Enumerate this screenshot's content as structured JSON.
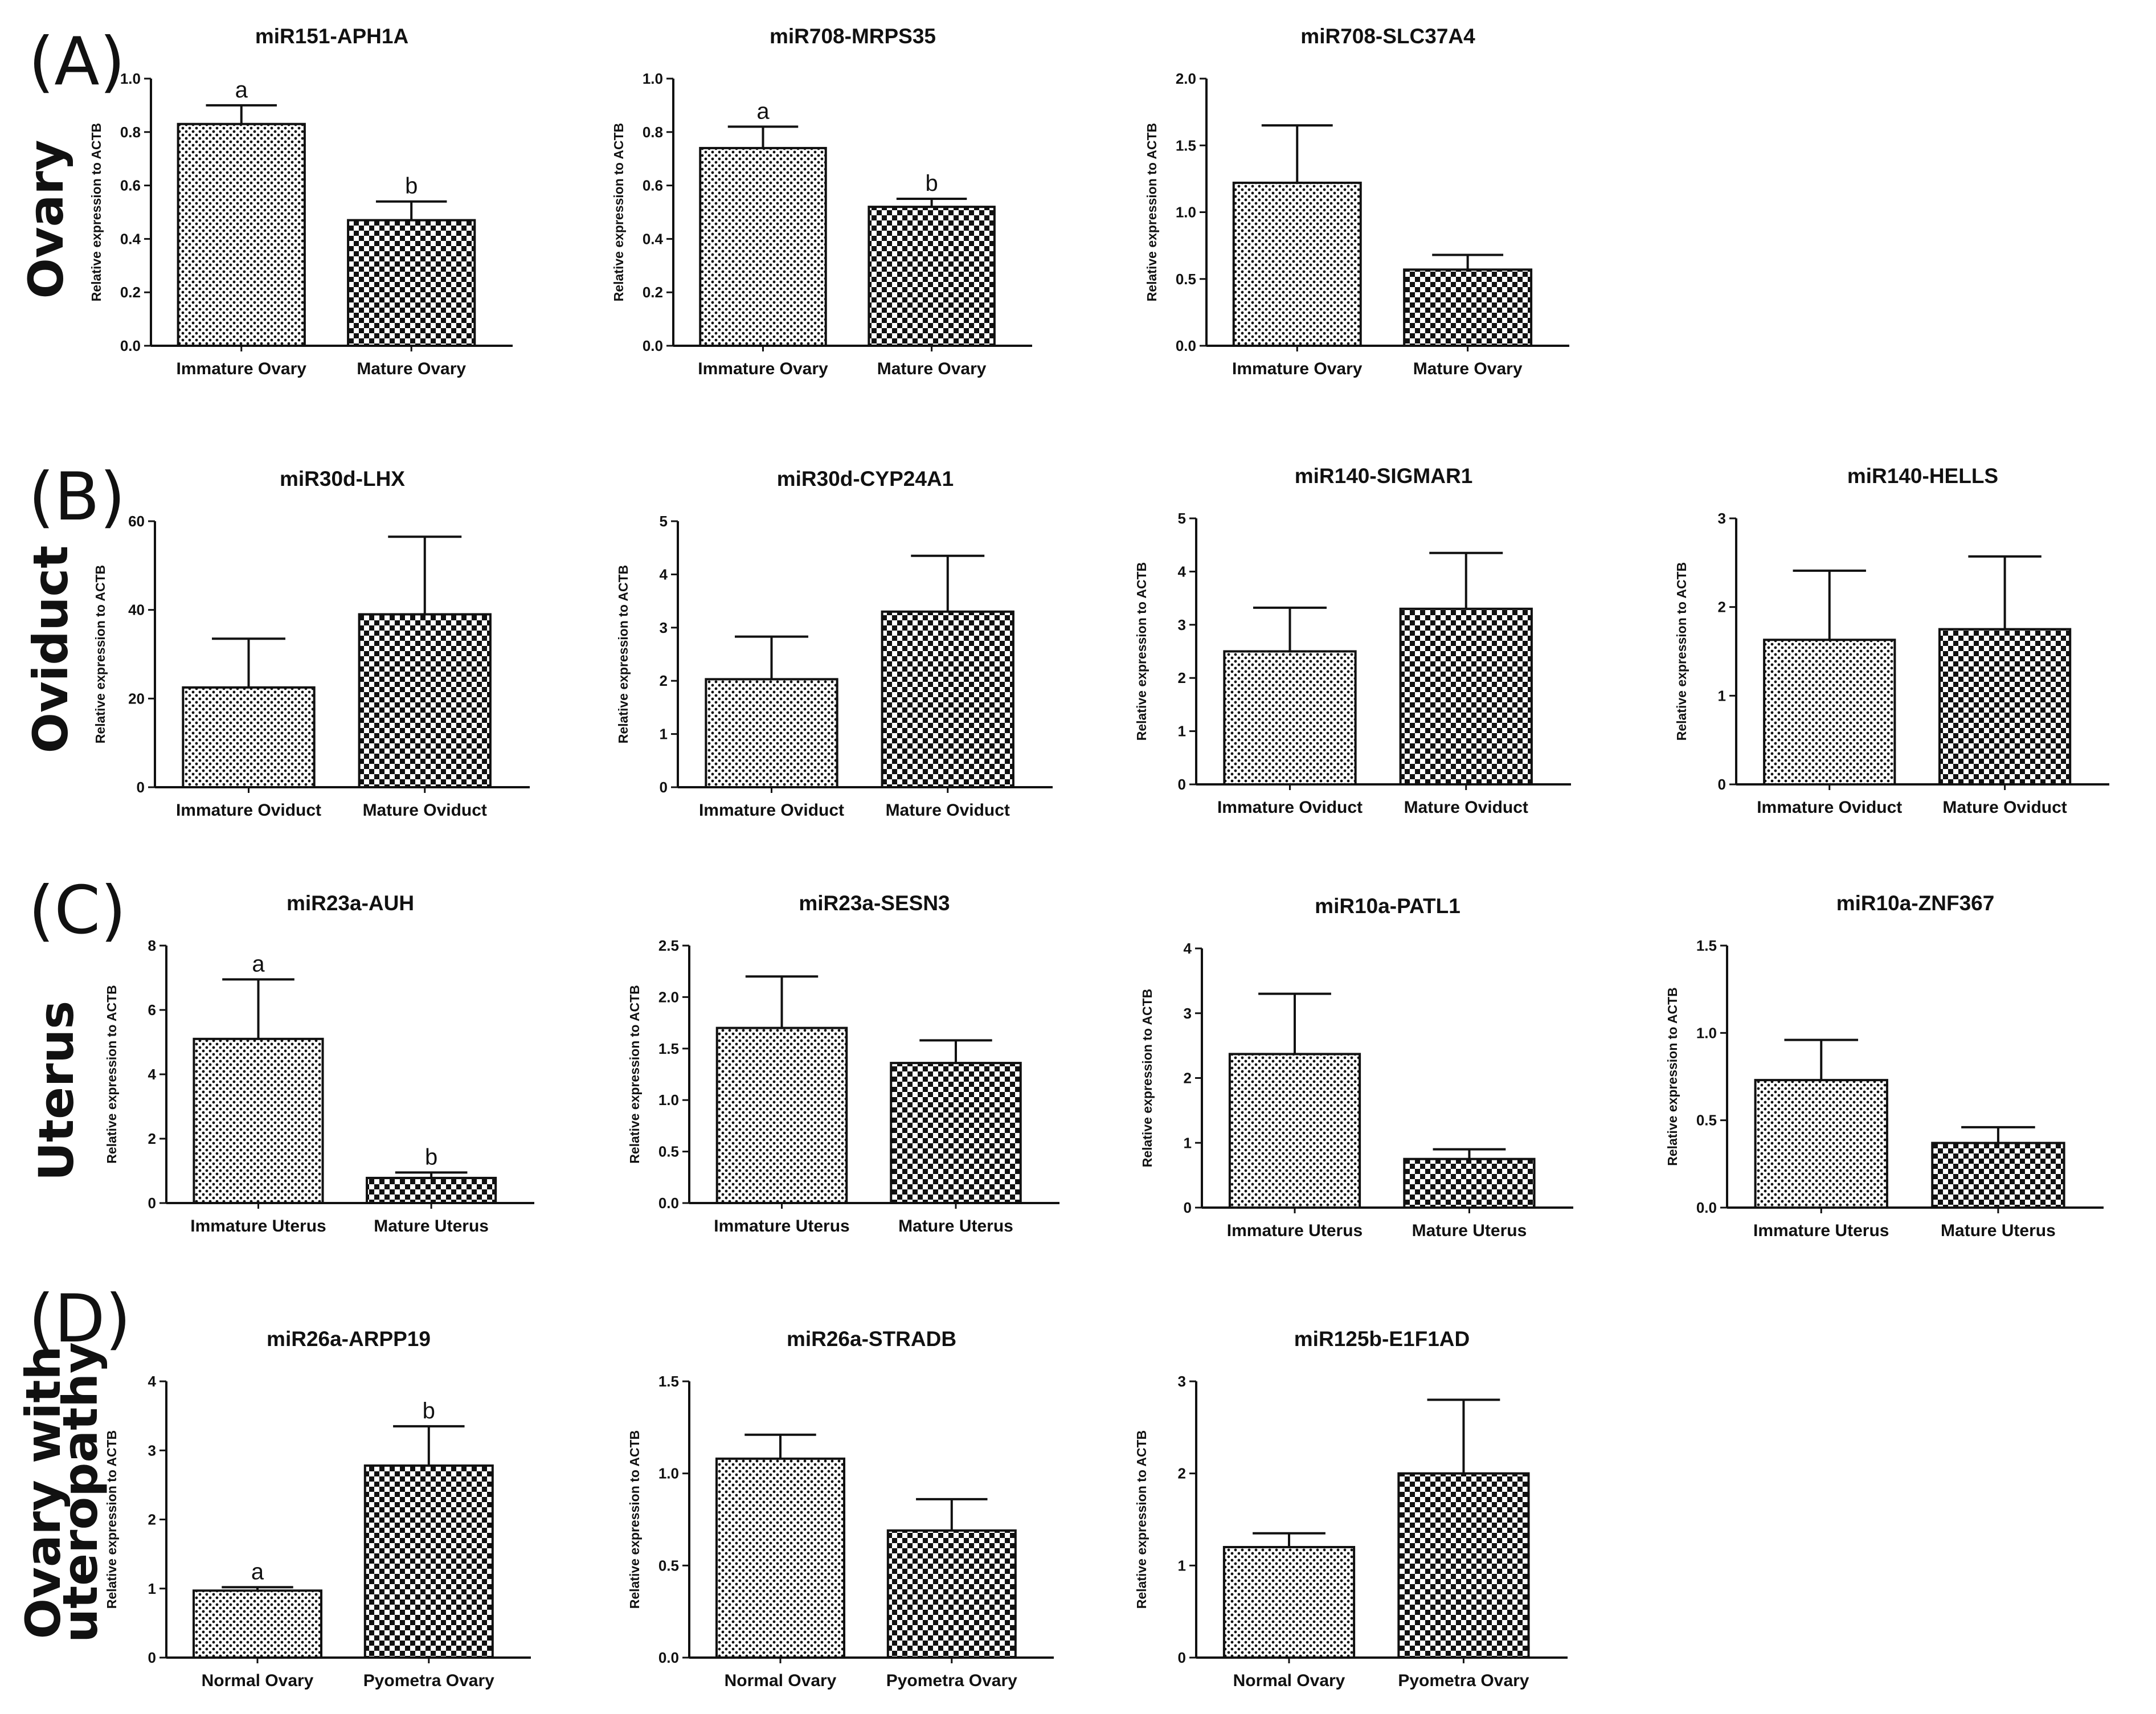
{
  "rows": [
    {
      "letter": "(A)",
      "tissue": [
        "Ovary"
      ]
    },
    {
      "letter": "(B)",
      "tissue": [
        "Oviduct"
      ]
    },
    {
      "letter": "(C)",
      "tissue": [
        "Uterus"
      ]
    },
    {
      "letter": "(D)",
      "tissue": [
        "Ovary with",
        "uteropathy"
      ]
    }
  ],
  "colors": {
    "ink": "#111111",
    "bar_fill": "#ffffff"
  },
  "chart_data": [
    {
      "type": "bar",
      "row": 0,
      "col": 0,
      "title": "miR151-APH1A",
      "ylabel": "Relative expression to ACTB",
      "categories": [
        "Immature Ovary",
        "Mature Ovary"
      ],
      "values": [
        0.83,
        0.47
      ],
      "errors": [
        0.07,
        0.07
      ],
      "significance": [
        "a",
        "b"
      ],
      "ylim": [
        0,
        1.0
      ],
      "ytick_labels": [
        "0.0",
        "0.2",
        "0.4",
        "0.6",
        "0.8",
        "1.0"
      ],
      "patterns": [
        "dots",
        "check"
      ]
    },
    {
      "type": "bar",
      "row": 0,
      "col": 1,
      "title": "miR708-MRPS35",
      "ylabel": "Relative expression to ACTB",
      "categories": [
        "Immature Ovary",
        "Mature Ovary"
      ],
      "values": [
        0.74,
        0.52
      ],
      "errors": [
        0.08,
        0.03
      ],
      "significance": [
        "a",
        "b"
      ],
      "ylim": [
        0,
        1.0
      ],
      "ytick_labels": [
        "0.0",
        "0.2",
        "0.4",
        "0.6",
        "0.8",
        "1.0"
      ],
      "patterns": [
        "dots",
        "check"
      ]
    },
    {
      "type": "bar",
      "row": 0,
      "col": 2,
      "title": "miR708-SLC37A4",
      "ylabel": "Relative expression to ACTB",
      "categories": [
        "Immature Ovary",
        "Mature Ovary"
      ],
      "values": [
        1.22,
        0.57
      ],
      "errors": [
        0.43,
        0.11
      ],
      "significance": [
        "",
        ""
      ],
      "ylim": [
        0,
        2.0
      ],
      "ytick_labels": [
        "0.0",
        "0.5",
        "1.0",
        "1.5",
        "2.0"
      ],
      "patterns": [
        "dots",
        "check"
      ]
    },
    {
      "type": "bar",
      "row": 1,
      "col": 0,
      "title": "miR30d-LHX",
      "ylabel": "Relative expression to ACTB",
      "categories": [
        "Immature Oviduct",
        "Mature Oviduct"
      ],
      "values": [
        22.5,
        39.0
      ],
      "errors": [
        11.0,
        17.5
      ],
      "significance": [
        "",
        ""
      ],
      "ylim": [
        0,
        60
      ],
      "ytick_labels": [
        "0",
        "20",
        "40",
        "60"
      ],
      "patterns": [
        "dots",
        "check"
      ]
    },
    {
      "type": "bar",
      "row": 1,
      "col": 1,
      "title": "miR30d-CYP24A1",
      "ylabel": "Relative expression to ACTB",
      "categories": [
        "Immature Oviduct",
        "Mature Oviduct"
      ],
      "values": [
        2.03,
        3.3
      ],
      "errors": [
        0.8,
        1.05
      ],
      "significance": [
        "",
        ""
      ],
      "ylim": [
        0,
        5
      ],
      "ytick_labels": [
        "0",
        "1",
        "2",
        "3",
        "4",
        "5"
      ],
      "patterns": [
        "dots",
        "check"
      ]
    },
    {
      "type": "bar",
      "row": 1,
      "col": 2,
      "title": "miR140-SIGMAR1",
      "ylabel": "Relative expression to ACTB",
      "categories": [
        "Immature Oviduct",
        "Mature Oviduct"
      ],
      "values": [
        2.5,
        3.3
      ],
      "errors": [
        0.82,
        1.05
      ],
      "significance": [
        "",
        ""
      ],
      "ylim": [
        0,
        5
      ],
      "ytick_labels": [
        "0",
        "1",
        "2",
        "3",
        "4",
        "5"
      ],
      "patterns": [
        "dots",
        "check"
      ]
    },
    {
      "type": "bar",
      "row": 1,
      "col": 3,
      "title": "miR140-HELLS",
      "ylabel": "Relative expression to ACTB",
      "categories": [
        "Immature Oviduct",
        "Mature Oviduct"
      ],
      "values": [
        1.63,
        1.75
      ],
      "errors": [
        0.78,
        0.82
      ],
      "significance": [
        "",
        ""
      ],
      "ylim": [
        0,
        3
      ],
      "ytick_labels": [
        "0",
        "1",
        "2",
        "3"
      ],
      "patterns": [
        "dots",
        "check"
      ]
    },
    {
      "type": "bar",
      "row": 2,
      "col": 0,
      "title": "miR23a-AUH",
      "ylabel": "Relative expression to ACTB",
      "categories": [
        "Immature Uterus",
        "Mature Uterus"
      ],
      "values": [
        5.1,
        0.78
      ],
      "errors": [
        1.85,
        0.17
      ],
      "significance": [
        "a",
        "b"
      ],
      "ylim": [
        0,
        8
      ],
      "ytick_labels": [
        "0",
        "2",
        "4",
        "6",
        "8"
      ],
      "patterns": [
        "dots",
        "check"
      ]
    },
    {
      "type": "bar",
      "row": 2,
      "col": 1,
      "title": "miR23a-SESN3",
      "ylabel": "Relative expression to ACTB",
      "categories": [
        "Immature Uterus",
        "Mature Uterus"
      ],
      "values": [
        1.7,
        1.36
      ],
      "errors": [
        0.5,
        0.22
      ],
      "significance": [
        "",
        ""
      ],
      "ylim": [
        0,
        2.5
      ],
      "ytick_labels": [
        "0.0",
        "0.5",
        "1.0",
        "1.5",
        "2.0",
        "2.5"
      ],
      "patterns": [
        "dots",
        "check"
      ]
    },
    {
      "type": "bar",
      "row": 2,
      "col": 2,
      "title": "miR10a-PATL1",
      "ylabel": "Relative expression to ACTB",
      "categories": [
        "Immature Uterus",
        "Mature Uterus"
      ],
      "values": [
        2.37,
        0.75
      ],
      "errors": [
        0.93,
        0.15
      ],
      "significance": [
        "",
        ""
      ],
      "ylim": [
        0,
        4
      ],
      "ytick_labels": [
        "0",
        "1",
        "2",
        "3",
        "4"
      ],
      "patterns": [
        "dots",
        "check"
      ]
    },
    {
      "type": "bar",
      "row": 2,
      "col": 3,
      "title": "miR10a-ZNF367",
      "ylabel": "Relative expression to ACTB",
      "categories": [
        "Immature Uterus",
        "Mature Uterus"
      ],
      "values": [
        0.73,
        0.37
      ],
      "errors": [
        0.23,
        0.09
      ],
      "significance": [
        "",
        ""
      ],
      "ylim": [
        0,
        1.5
      ],
      "ytick_labels": [
        "0.0",
        "0.5",
        "1.0",
        "1.5"
      ],
      "patterns": [
        "dots",
        "check"
      ]
    },
    {
      "type": "bar",
      "row": 3,
      "col": 0,
      "title": "miR26a-ARPP19",
      "ylabel": "Relative expression to ACTB",
      "categories": [
        "Normal Ovary",
        "Pyometra Ovary"
      ],
      "values": [
        0.97,
        2.78
      ],
      "errors": [
        0.05,
        0.57
      ],
      "significance": [
        "a",
        "b"
      ],
      "ylim": [
        0,
        4
      ],
      "ytick_labels": [
        "0",
        "1",
        "2",
        "3",
        "4"
      ],
      "patterns": [
        "dots",
        "check"
      ]
    },
    {
      "type": "bar",
      "row": 3,
      "col": 1,
      "title": "miR26a-STRADB",
      "ylabel": "Relative expression to ACTB",
      "categories": [
        "Normal Ovary",
        "Pyometra Ovary"
      ],
      "values": [
        1.08,
        0.69
      ],
      "errors": [
        0.13,
        0.17
      ],
      "significance": [
        "",
        ""
      ],
      "ylim": [
        0,
        1.5
      ],
      "ytick_labels": [
        "0.0",
        "0.5",
        "1.0",
        "1.5"
      ],
      "patterns": [
        "dots",
        "check"
      ]
    },
    {
      "type": "bar",
      "row": 3,
      "col": 2,
      "title": "miR125b-E1F1AD",
      "ylabel": "Relative expression to ACTB",
      "categories": [
        "Normal Ovary",
        "Pyometra Ovary"
      ],
      "values": [
        1.2,
        2.0
      ],
      "errors": [
        0.15,
        0.8
      ],
      "significance": [
        "",
        ""
      ],
      "ylim": [
        0,
        3
      ],
      "ytick_labels": [
        "0",
        "1",
        "2",
        "3"
      ],
      "patterns": [
        "dots",
        "check"
      ]
    }
  ]
}
